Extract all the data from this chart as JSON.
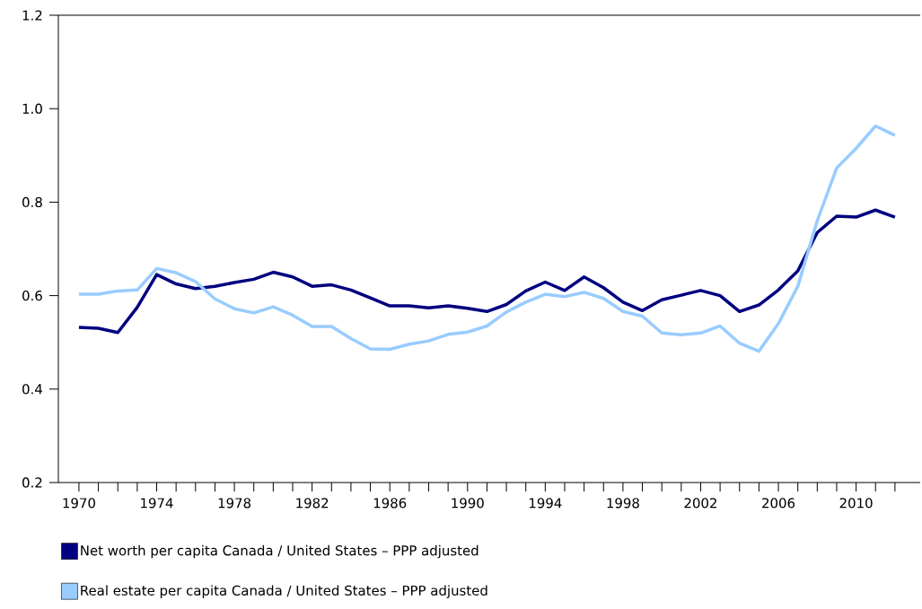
{
  "chart_data": {
    "type": "line",
    "x": [
      1970,
      1971,
      1972,
      1973,
      1974,
      1975,
      1976,
      1977,
      1978,
      1979,
      1980,
      1981,
      1982,
      1983,
      1984,
      1985,
      1986,
      1987,
      1988,
      1989,
      1990,
      1991,
      1992,
      1993,
      1994,
      1995,
      1996,
      1997,
      1998,
      1999,
      2000,
      2001,
      2002,
      2003,
      2004,
      2005,
      2006,
      2007,
      2008,
      2009,
      2010,
      2011,
      2012
    ],
    "series": [
      {
        "name": "Net worth per capita Canada / United States – PPP adjusted",
        "color": "#000080",
        "values": [
          0.532,
          0.53,
          0.521,
          0.575,
          0.645,
          0.625,
          0.615,
          0.62,
          0.628,
          0.635,
          0.65,
          0.64,
          0.62,
          0.623,
          0.612,
          0.595,
          0.578,
          0.578,
          0.574,
          0.578,
          0.573,
          0.566,
          0.581,
          0.61,
          0.629,
          0.611,
          0.64,
          0.617,
          0.586,
          0.568,
          0.591,
          0.601,
          0.611,
          0.6,
          0.566,
          0.58,
          0.612,
          0.653,
          0.735,
          0.77,
          0.768,
          0.783,
          0.768
        ]
      },
      {
        "name": "Real estate per capita Canada / United States – PPP adjusted",
        "color": "#99ccff",
        "values": [
          0.603,
          0.603,
          0.61,
          0.612,
          0.658,
          0.649,
          0.63,
          0.593,
          0.572,
          0.563,
          0.576,
          0.558,
          0.534,
          0.534,
          0.508,
          0.486,
          0.485,
          0.496,
          0.503,
          0.517,
          0.522,
          0.535,
          0.565,
          0.586,
          0.603,
          0.598,
          0.607,
          0.594,
          0.566,
          0.556,
          0.52,
          0.516,
          0.52,
          0.535,
          0.498,
          0.481,
          0.54,
          0.62,
          0.76,
          0.873,
          0.915,
          0.963,
          0.943
        ]
      }
    ],
    "xlim": [
      1968.94,
      2013.3
    ],
    "xticks": [
      1970,
      {
        "value": 1971,
        "label": null
      },
      {
        "value": 1972,
        "label": null
      },
      {
        "value": 1973,
        "label": null
      },
      1974,
      {
        "value": 1975,
        "label": null
      },
      {
        "value": 1976,
        "label": null
      },
      {
        "value": 1977,
        "label": null
      },
      1978,
      {
        "value": 1979,
        "label": null
      },
      {
        "value": 1980,
        "label": null
      },
      {
        "value": 1981,
        "label": null
      },
      1982,
      {
        "value": 1983,
        "label": null
      },
      {
        "value": 1984,
        "label": null
      },
      {
        "value": 1985,
        "label": null
      },
      1986,
      {
        "value": 1987,
        "label": null
      },
      {
        "value": 1988,
        "label": null
      },
      {
        "value": 1989,
        "label": null
      },
      1990,
      {
        "value": 1991,
        "label": null
      },
      {
        "value": 1992,
        "label": null
      },
      {
        "value": 1993,
        "label": null
      },
      1994,
      {
        "value": 1995,
        "label": null
      },
      {
        "value": 1996,
        "label": null
      },
      {
        "value": 1997,
        "label": null
      },
      1998,
      {
        "value": 1999,
        "label": null
      },
      {
        "value": 2000,
        "label": null
      },
      {
        "value": 2001,
        "label": null
      },
      2002,
      {
        "value": 2003,
        "label": null
      },
      {
        "value": 2004,
        "label": null
      },
      {
        "value": 2005,
        "label": null
      },
      2006,
      {
        "value": 2007,
        "label": null
      },
      {
        "value": 2008,
        "label": null
      },
      {
        "value": 2009,
        "label": null
      },
      2010,
      {
        "value": 2011,
        "label": null
      },
      {
        "value": 2012,
        "label": null
      }
    ],
    "ylim": [
      0.2,
      1.2
    ],
    "yticks": [
      0.2,
      0.4,
      0.6,
      0.8,
      {
        "value": 1.0,
        "label": "1.0"
      },
      1.2
    ],
    "grid": false,
    "legend": "bottom",
    "marker": "none",
    "line_style": "solid"
  }
}
